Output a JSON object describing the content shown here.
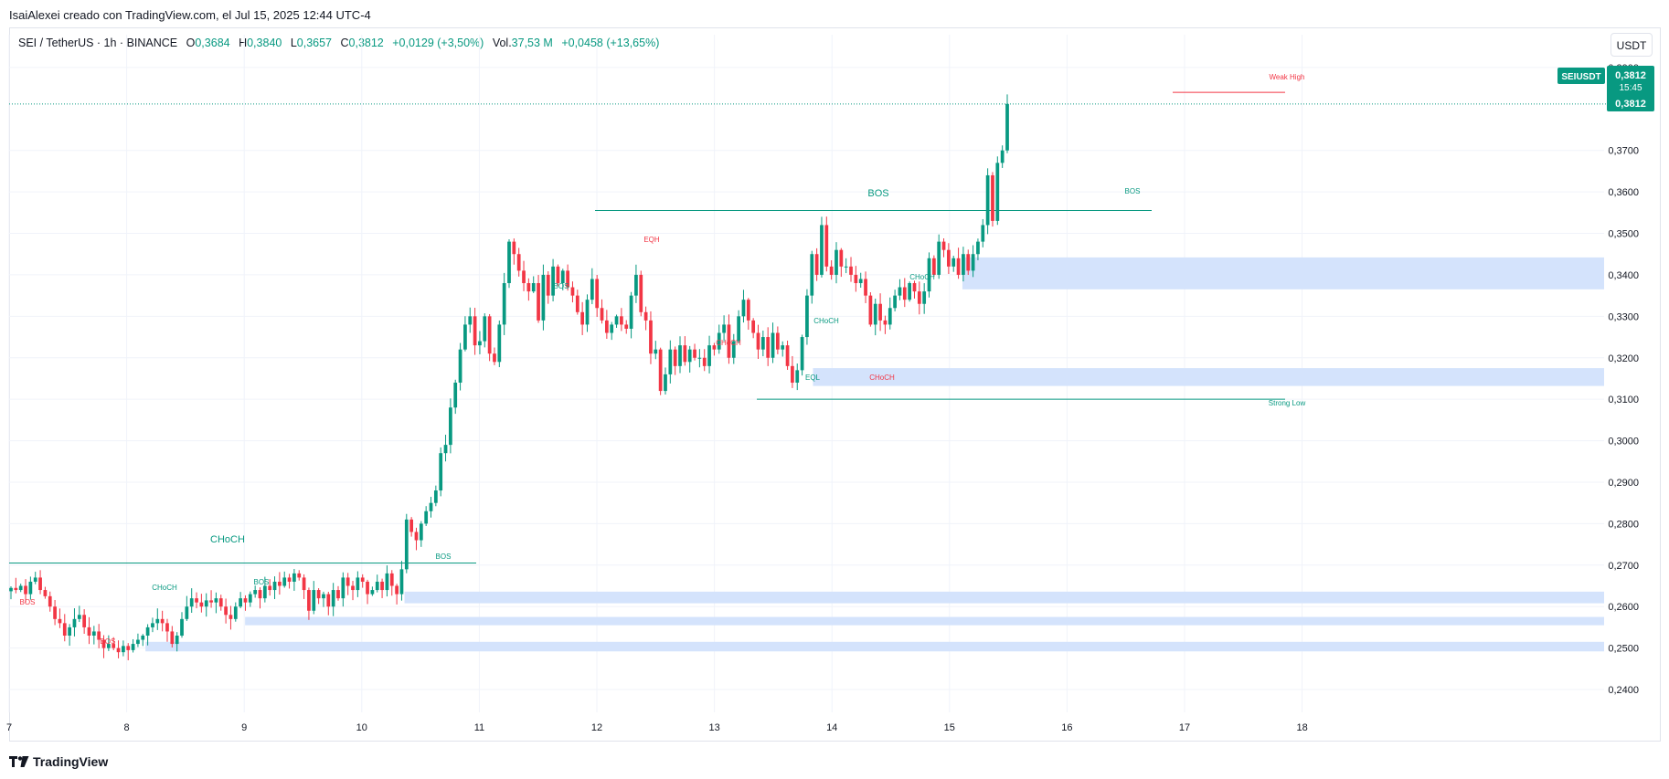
{
  "header": {
    "creator_line": "IsaiAlexei creado con TradingView.com, el Jul 15, 2025 12:44 UTC-4"
  },
  "legend": {
    "symbol": "SEI / TetherUS · 1h · BINANCE",
    "open_label": "O",
    "open": "0,3684",
    "high_label": "H",
    "high": "0,3840",
    "low_label": "L",
    "low": "0,3657",
    "close_label": "C",
    "close": "0,3812",
    "change": "+0,0129 (+3,50%)",
    "volume_label": "Vol.",
    "volume": "37,53 M",
    "volume_change": "+0,0458 (+13,65%)"
  },
  "currency_button": "USDT",
  "footer": {
    "logo_text": "TradingView"
  },
  "colors": {
    "up": "#089981",
    "down": "#f23645",
    "zone": "#d4e3fc",
    "grid": "#f0f3fa",
    "axis_text": "#131722"
  },
  "chart_data": {
    "type": "candlestick",
    "symbol": "SEIUSDT",
    "interval": "1h",
    "ylim": [
      0.2345,
      0.3935
    ],
    "y_ticks": [
      "0,2400",
      "0,2500",
      "0,2600",
      "0,2700",
      "0,2800",
      "0,2900",
      "0,3000",
      "0,3100",
      "0,3200",
      "0,3300",
      "0,3400",
      "0,3500",
      "0,3600",
      "0,3700",
      "0,3900"
    ],
    "x_ticks": [
      "7",
      "8",
      "9",
      "10",
      "11",
      "12",
      "13",
      "14",
      "15",
      "16",
      "17",
      "18"
    ],
    "price_label": {
      "symbol": "SEIUSDT",
      "price": "0,3812",
      "countdown": "15:45",
      "price2": "0,3812",
      "top_value": "0,3812"
    },
    "current_price": 0.3812,
    "closes": [
      0.2645,
      0.264,
      0.265,
      0.263,
      0.266,
      0.267,
      0.264,
      0.2625,
      0.26,
      0.257,
      0.256,
      0.253,
      0.255,
      0.257,
      0.258,
      0.255,
      0.253,
      0.254,
      0.252,
      0.25,
      0.251,
      0.25,
      0.249,
      0.2505,
      0.2495,
      0.251,
      0.252,
      0.253,
      0.255,
      0.256,
      0.257,
      0.256,
      0.254,
      0.251,
      0.253,
      0.257,
      0.26,
      0.262,
      0.261,
      0.26,
      0.2615,
      0.261,
      0.262,
      0.26,
      0.258,
      0.257,
      0.26,
      0.262,
      0.261,
      0.263,
      0.264,
      0.262,
      0.265,
      0.264,
      0.266,
      0.265,
      0.267,
      0.266,
      0.268,
      0.267,
      0.264,
      0.259,
      0.264,
      0.262,
      0.263,
      0.26,
      0.264,
      0.262,
      0.267,
      0.265,
      0.264,
      0.267,
      0.266,
      0.263,
      0.264,
      0.266,
      0.264,
      0.268,
      0.265,
      0.263,
      0.269,
      0.281,
      0.278,
      0.276,
      0.28,
      0.283,
      0.285,
      0.288,
      0.297,
      0.299,
      0.308,
      0.314,
      0.322,
      0.328,
      0.33,
      0.323,
      0.324,
      0.33,
      0.321,
      0.319,
      0.328,
      0.338,
      0.348,
      0.345,
      0.341,
      0.338,
      0.336,
      0.338,
      0.329,
      0.34,
      0.335,
      0.342,
      0.338,
      0.341,
      0.337,
      0.335,
      0.331,
      0.328,
      0.334,
      0.339,
      0.332,
      0.329,
      0.326,
      0.328,
      0.33,
      0.328,
      0.327,
      0.335,
      0.34,
      0.331,
      0.329,
      0.321,
      0.322,
      0.312,
      0.316,
      0.322,
      0.318,
      0.323,
      0.319,
      0.322,
      0.32,
      0.32,
      0.318,
      0.323,
      0.322,
      0.326,
      0.328,
      0.32,
      0.324,
      0.33,
      0.334,
      0.329,
      0.326,
      0.322,
      0.325,
      0.32,
      0.326,
      0.322,
      0.323,
      0.318,
      0.314,
      0.317,
      0.325,
      0.335,
      0.345,
      0.34,
      0.352,
      0.342,
      0.34,
      0.346,
      0.342,
      0.342,
      0.34,
      0.338,
      0.339,
      0.335,
      0.328,
      0.333,
      0.329,
      0.328,
      0.332,
      0.335,
      0.337,
      0.334,
      0.338,
      0.336,
      0.333,
      0.336,
      0.344,
      0.34,
      0.348,
      0.346,
      0.342,
      0.344,
      0.34,
      0.345,
      0.341,
      0.345,
      0.348,
      0.352,
      0.364,
      0.353,
      0.367,
      0.37,
      0.3812
    ],
    "annotations": [
      {
        "text": "BOS",
        "color": "#089981"
      },
      {
        "text": "BOS",
        "color": "#089981"
      },
      {
        "text": "BOS",
        "color": "#089981"
      },
      {
        "text": "BOS",
        "color": "#089981"
      },
      {
        "text": "BOS",
        "color": "#089981"
      },
      {
        "text": "BOS",
        "color": "#f23645"
      },
      {
        "text": "BOS",
        "color": "#f23645"
      },
      {
        "text": "CHoCH",
        "color": "#089981"
      },
      {
        "text": "CHoCH",
        "color": "#089981"
      },
      {
        "text": "CHoCH",
        "color": "#089981"
      },
      {
        "text": "CHoCH",
        "color": "#089981"
      },
      {
        "text": "CHoCH",
        "color": "#f23645"
      },
      {
        "text": "CHoCH",
        "color": "#f23645"
      },
      {
        "text": "EQH",
        "color": "#f23645"
      },
      {
        "text": "EQL",
        "color": "#089981"
      },
      {
        "text": "Weak High",
        "color": "#f23645"
      },
      {
        "text": "Strong Low",
        "color": "#089981"
      }
    ],
    "levels": [
      {
        "name": "CHoCH",
        "price": 0.2705,
        "color": "#089981"
      },
      {
        "name": "BOS",
        "price": 0.3555,
        "color": "#089981"
      },
      {
        "name": "Weak High",
        "price": 0.384,
        "color": "#f23645"
      },
      {
        "name": "Strong Low",
        "price": 0.31,
        "color": "#089981"
      }
    ],
    "zones": [
      [
        0.3365,
        0.3442
      ],
      [
        0.3132,
        0.3175
      ],
      [
        0.2608,
        0.2636
      ],
      [
        0.2555,
        0.2575
      ],
      [
        0.2492,
        0.2515
      ]
    ]
  }
}
